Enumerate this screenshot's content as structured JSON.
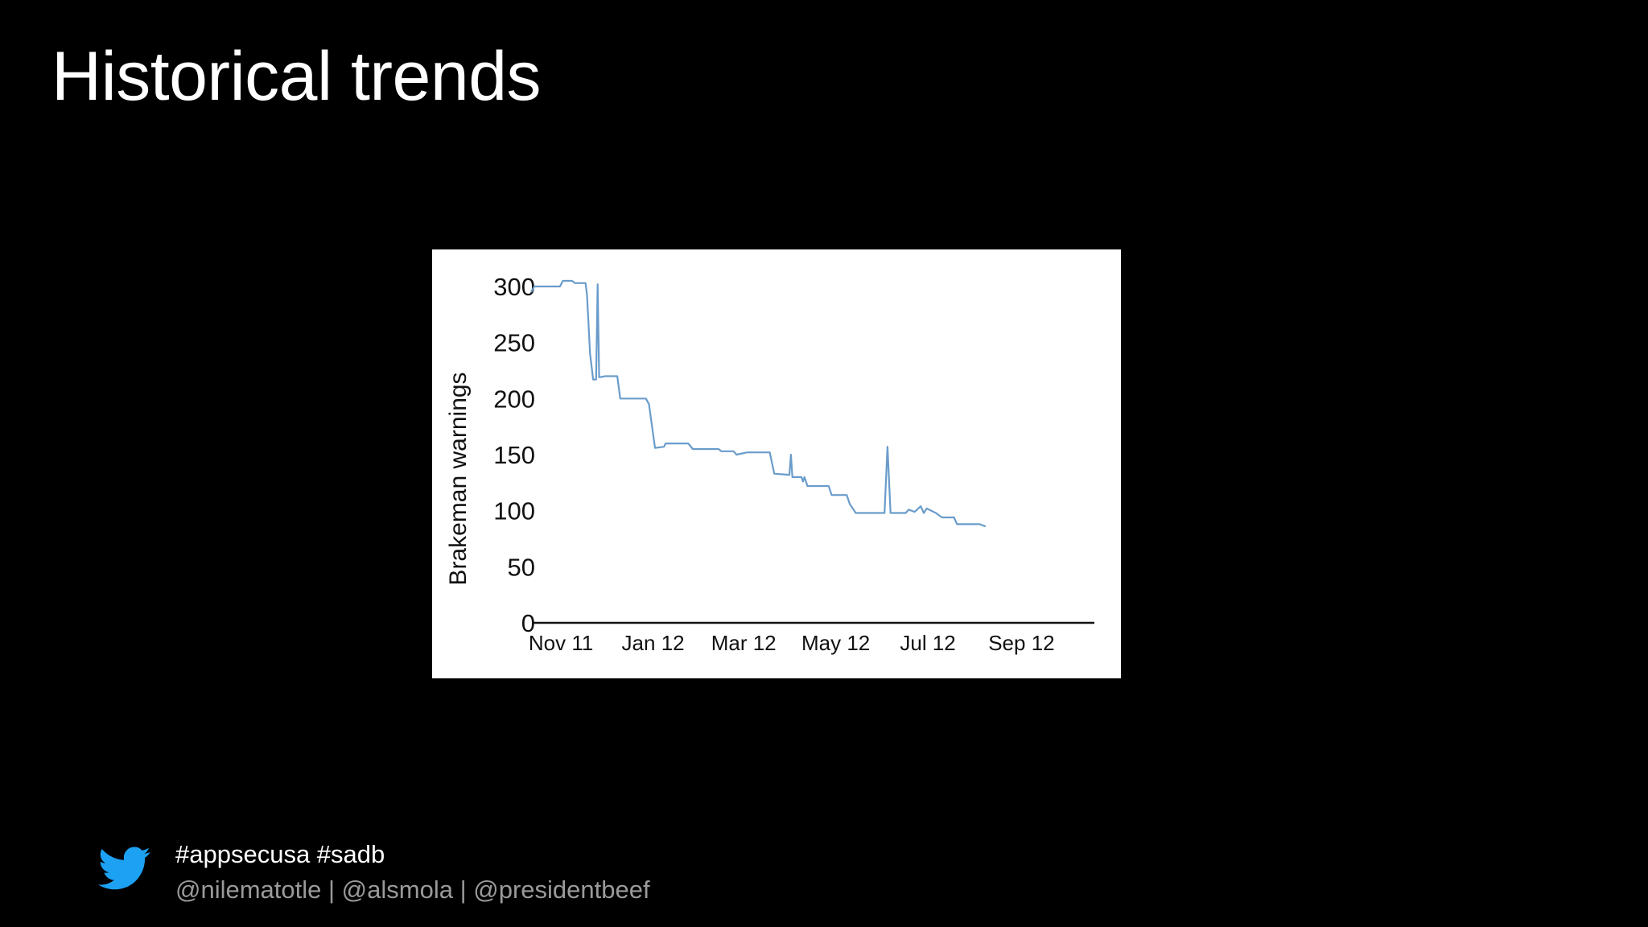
{
  "slide": {
    "title": "Historical trends",
    "hashtags": "#appsecusa #sadb",
    "handles": "@nilematotle | @alsmola | @presidentbeef",
    "icon": "twitter-bird-icon",
    "icon_color": "#1da1f2"
  },
  "chart_data": {
    "type": "line",
    "title": "",
    "xlabel": "",
    "ylabel": "Brakeman warnings",
    "ylim": [
      0,
      300
    ],
    "yticks": [
      0,
      50,
      100,
      150,
      200,
      250,
      300
    ],
    "xtick_labels": [
      "Nov 11",
      "Jan 12",
      "Mar 12",
      "May 12",
      "Jul 12",
      "Sep 12"
    ],
    "xlim": [
      "2011-10-25",
      "2012-10-31"
    ],
    "grid": false,
    "line_color": "#6a9ccb",
    "series": [
      {
        "points": [
          [
            "2011-10-24",
            295
          ],
          [
            "2011-10-26",
            300
          ],
          [
            "2011-11-05",
            300
          ],
          [
            "2011-11-12",
            300
          ],
          [
            "2011-11-14",
            305
          ],
          [
            "2011-11-20",
            305
          ],
          [
            "2011-11-22",
            303
          ],
          [
            "2011-11-29",
            303
          ],
          [
            "2011-11-30",
            292
          ],
          [
            "2011-12-02",
            240
          ],
          [
            "2011-12-04",
            217
          ],
          [
            "2011-12-06",
            217
          ],
          [
            "2011-12-07",
            302
          ],
          [
            "2011-12-08",
            219
          ],
          [
            "2011-12-12",
            220
          ],
          [
            "2011-12-20",
            220
          ],
          [
            "2011-12-22",
            200
          ],
          [
            "2012-01-08",
            200
          ],
          [
            "2012-01-10",
            195
          ],
          [
            "2012-01-14",
            156
          ],
          [
            "2012-01-20",
            157
          ],
          [
            "2012-01-21",
            160
          ],
          [
            "2012-02-05",
            160
          ],
          [
            "2012-02-08",
            155
          ],
          [
            "2012-02-25",
            155
          ],
          [
            "2012-02-27",
            153
          ],
          [
            "2012-03-06",
            153
          ],
          [
            "2012-03-08",
            150
          ],
          [
            "2012-03-15",
            152
          ],
          [
            "2012-03-30",
            152
          ],
          [
            "2012-04-02",
            133
          ],
          [
            "2012-04-12",
            132
          ],
          [
            "2012-04-13",
            150
          ],
          [
            "2012-04-14",
            130
          ],
          [
            "2012-04-20",
            130
          ],
          [
            "2012-04-21",
            126
          ],
          [
            "2012-04-22",
            130
          ],
          [
            "2012-04-24",
            122
          ],
          [
            "2012-05-08",
            122
          ],
          [
            "2012-05-10",
            114
          ],
          [
            "2012-05-20",
            114
          ],
          [
            "2012-05-22",
            106
          ],
          [
            "2012-05-26",
            98
          ],
          [
            "2012-06-14",
            98
          ],
          [
            "2012-06-16",
            157
          ],
          [
            "2012-06-18",
            98
          ],
          [
            "2012-06-28",
            98
          ],
          [
            "2012-06-30",
            101
          ],
          [
            "2012-07-04",
            99
          ],
          [
            "2012-07-08",
            104
          ],
          [
            "2012-07-10",
            98
          ],
          [
            "2012-07-12",
            102
          ],
          [
            "2012-07-18",
            98
          ],
          [
            "2012-07-22",
            94
          ],
          [
            "2012-07-30",
            94
          ],
          [
            "2012-08-01",
            88
          ],
          [
            "2012-08-16",
            88
          ],
          [
            "2012-08-20",
            86
          ]
        ]
      }
    ]
  }
}
